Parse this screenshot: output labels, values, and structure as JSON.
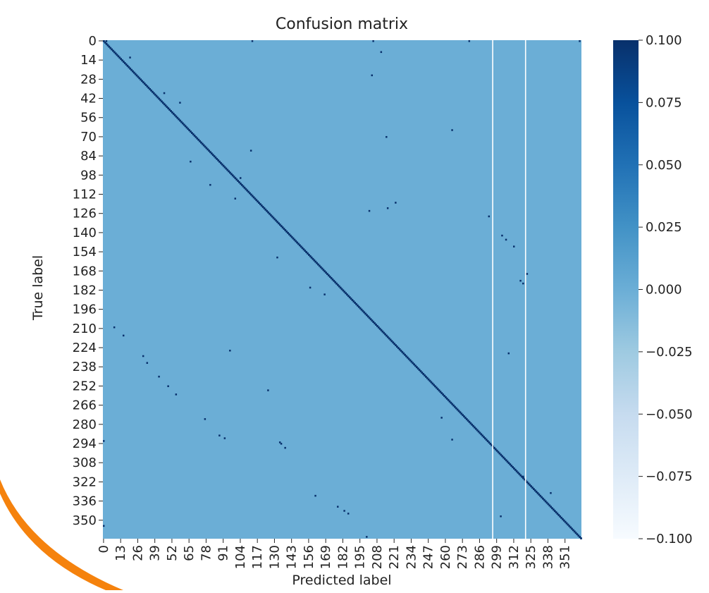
{
  "colors": {
    "background_cell": "#6baed6",
    "diagonal": "#08306b",
    "separator_lines": "#ffffff",
    "colormap": "Blues",
    "decoration_arc": "#f5820d"
  },
  "chart_data": {
    "type": "heatmap",
    "title": "Confusion matrix",
    "xlabel": "Predicted label",
    "ylabel": "True label",
    "n_classes": 364,
    "yticks": [
      "0",
      "14",
      "28",
      "42",
      "56",
      "70",
      "84",
      "98",
      "112",
      "126",
      "140",
      "154",
      "168",
      "182",
      "196",
      "210",
      "224",
      "238",
      "252",
      "266",
      "280",
      "294",
      "308",
      "322",
      "336",
      "350"
    ],
    "xticks": [
      "0",
      "13",
      "26",
      "39",
      "52",
      "65",
      "78",
      "91",
      "104",
      "117",
      "130",
      "143",
      "156",
      "169",
      "182",
      "195",
      "208",
      "221",
      "234",
      "247",
      "260",
      "273",
      "286",
      "299",
      "312",
      "325",
      "338",
      "351"
    ],
    "colorbar": {
      "range": [
        -0.1,
        0.1
      ],
      "ticks": [
        "0.100",
        "0.075",
        "0.050",
        "0.025",
        "0.000",
        "−0.025",
        "−0.050",
        "−0.075",
        "−0.100"
      ]
    },
    "background_value": 0.0,
    "diagonal_value": 0.1,
    "separator_columns": [
      296,
      321
    ],
    "off_diagonal_points": [
      [
        0,
        2
      ],
      [
        0,
        113
      ],
      [
        0,
        205
      ],
      [
        0,
        278
      ],
      [
        0,
        362
      ],
      [
        8,
        211
      ],
      [
        12,
        20
      ],
      [
        25,
        204
      ],
      [
        38,
        46
      ],
      [
        45,
        58
      ],
      [
        65,
        265
      ],
      [
        70,
        215
      ],
      [
        80,
        112
      ],
      [
        88,
        66
      ],
      [
        100,
        104
      ],
      [
        105,
        81
      ],
      [
        115,
        100
      ],
      [
        118,
        222
      ],
      [
        122,
        216
      ],
      [
        124,
        202
      ],
      [
        128,
        293
      ],
      [
        142,
        303
      ],
      [
        145,
        306
      ],
      [
        150,
        312
      ],
      [
        158,
        132
      ],
      [
        170,
        322
      ],
      [
        175,
        317
      ],
      [
        177,
        319
      ],
      [
        180,
        157
      ],
      [
        185,
        168
      ],
      [
        209,
        8
      ],
      [
        215,
        15
      ],
      [
        226,
        96
      ],
      [
        228,
        308
      ],
      [
        230,
        30
      ],
      [
        235,
        33
      ],
      [
        245,
        42
      ],
      [
        252,
        49
      ],
      [
        255,
        125
      ],
      [
        258,
        55
      ],
      [
        275,
        257
      ],
      [
        276,
        77
      ],
      [
        288,
        88
      ],
      [
        290,
        92
      ],
      [
        291,
        265
      ],
      [
        292,
        0
      ],
      [
        293,
        134
      ],
      [
        294,
        135
      ],
      [
        297,
        138
      ],
      [
        318,
        319
      ],
      [
        332,
        161
      ],
      [
        340,
        178
      ],
      [
        343,
        183
      ],
      [
        345,
        186
      ],
      [
        347,
        302
      ],
      [
        354,
        0
      ],
      [
        362,
        200
      ],
      [
        330,
        340
      ]
    ]
  }
}
